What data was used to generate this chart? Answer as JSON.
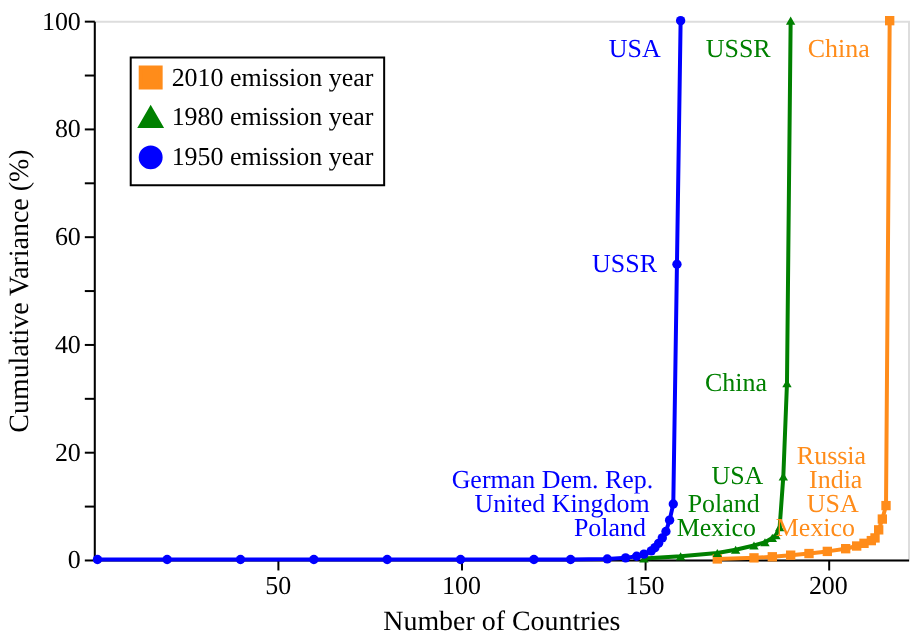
{
  "chart_data": {
    "type": "line",
    "xlabel": "Number of Countries",
    "ylabel": "Cumulative Variance (%)",
    "xlim": [
      0,
      222
    ],
    "ylim": [
      0,
      100
    ],
    "xticks": [
      50,
      100,
      150,
      200
    ],
    "yticks": [
      0,
      {
        "value": 10,
        "label": null
      },
      20,
      {
        "value": 30,
        "label": null
      },
      40,
      {
        "value": 50,
        "label": null
      },
      60,
      {
        "value": 70,
        "label": null
      },
      80,
      {
        "value": 90,
        "label": null
      },
      100
    ],
    "grid": false,
    "legend": "top left",
    "line_style": "solid",
    "series": [
      {
        "name": "2010 emission year",
        "color": "#ff8c1a",
        "marker": "square",
        "x": [
          170,
          180,
          185,
          190,
          195,
          200,
          205,
          208,
          210,
          212,
          213,
          214,
          215,
          216,
          217
        ],
        "values": [
          0.1,
          0.3,
          0.5,
          0.8,
          1.1,
          1.5,
          2.0,
          2.5,
          3.0,
          3.5,
          4.0,
          5.5,
          7.5,
          10,
          100
        ]
      },
      {
        "name": "1980 emission year",
        "color": "#008000",
        "marker": "triangle",
        "x": [
          150,
          160,
          170,
          175,
          180,
          183,
          185,
          186,
          187,
          188,
          189,
          190
        ],
        "values": [
          0.2,
          0.6,
          1.2,
          1.8,
          2.6,
          3.2,
          4.0,
          4.5,
          6.0,
          15.4,
          32.7,
          100
        ]
      },
      {
        "name": "1950 emission year",
        "color": "#0000ff",
        "marker": "circle",
        "x": [
          1,
          20,
          40,
          60,
          80,
          100,
          120,
          130,
          140,
          145,
          148,
          150,
          152,
          153,
          154,
          155,
          156,
          157,
          158,
          159,
          160
        ],
        "values": [
          0,
          0,
          0,
          0,
          0,
          0,
          0,
          0,
          0.1,
          0.3,
          0.6,
          1.0,
          1.6,
          2.2,
          3.0,
          4.0,
          5.2,
          7.3,
          10.3,
          54.8,
          100
        ]
      }
    ],
    "annotations": [
      {
        "text": "USA",
        "x": 160,
        "y": 100
      },
      {
        "text": "USSR",
        "x": 159,
        "y": 54.8
      },
      {
        "text": "German Dem. Rep.",
        "x": 158,
        "y": 10.3
      },
      {
        "text": "United Kingdom",
        "x": 157,
        "y": 7.3
      },
      {
        "text": "Poland",
        "x": 156,
        "y": 5.2
      },
      {
        "text": "USSR",
        "x": 190,
        "y": 100
      },
      {
        "text": "China",
        "x": 189,
        "y": 32.7
      },
      {
        "text": "USA",
        "x": 188,
        "y": 15.4
      },
      {
        "text": "Poland",
        "x": 187,
        "y": 6.0
      },
      {
        "text": "Mexico",
        "x": 186,
        "y": 4.5
      },
      {
        "text": "China",
        "x": 217,
        "y": 100
      },
      {
        "text": "Russia",
        "x": 216,
        "y": 10
      },
      {
        "text": "India",
        "x": 215,
        "y": 7.5
      },
      {
        "text": "USA",
        "x": 214,
        "y": 5.5
      },
      {
        "text": "Mexico",
        "x": 213,
        "y": 4.0
      }
    ]
  }
}
